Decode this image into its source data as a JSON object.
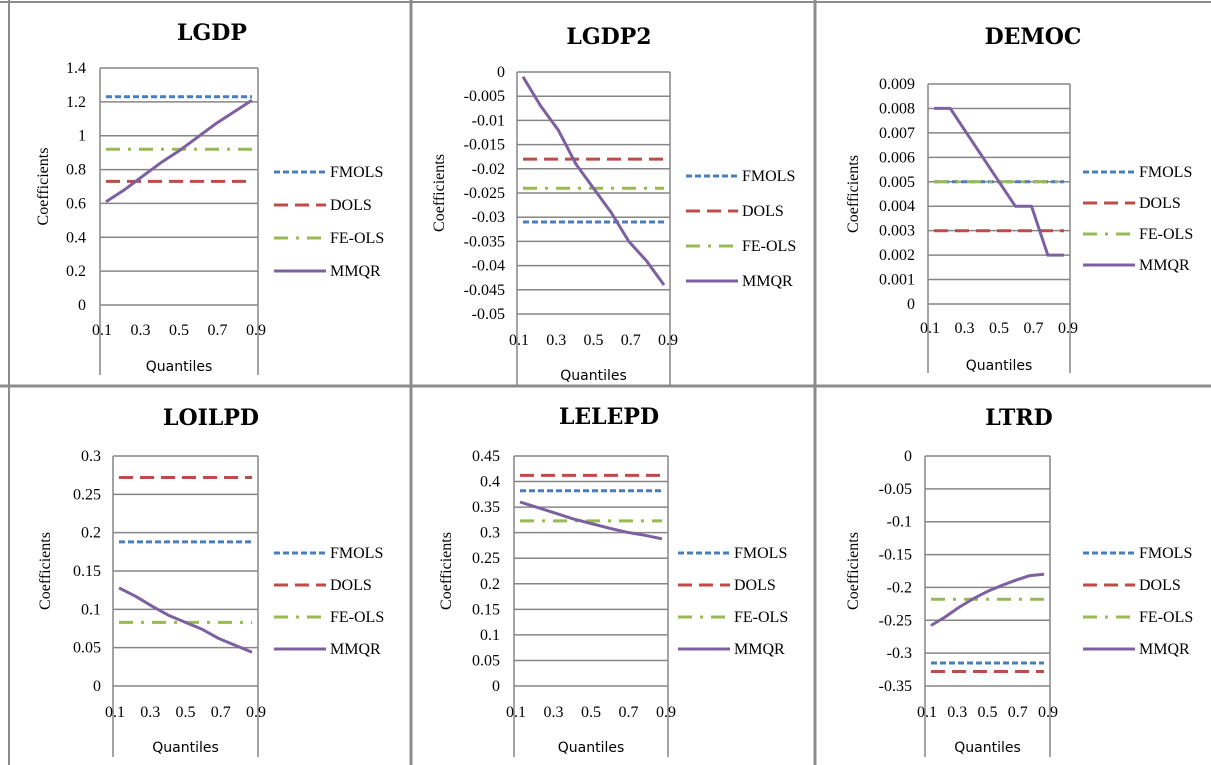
{
  "colors": {
    "FMOLS": "#4a7ebb",
    "DOLS": "#be4b48",
    "FE-OLS": "#98b954",
    "MMQR": "#7d60a0",
    "grid": "#868686",
    "frame": "#8c8c8c"
  },
  "legend_labels": [
    "FMOLS",
    "DOLS",
    "FE-OLS",
    "MMQR"
  ],
  "chart_data": [
    {
      "type": "line",
      "title": "LGDP",
      "xlabel": "Quantiles",
      "ylabel": "Coefficients",
      "x_tick_labels": [
        "0.1",
        "0.3",
        "0.5",
        "0.7",
        "0.9"
      ],
      "y_tick_labels": [
        "0",
        "0.2",
        "0.4",
        "0.6",
        "0.8",
        "1",
        "1.2",
        "1.4"
      ],
      "ylim": [
        0,
        1.4
      ],
      "grid": true,
      "legend": "right",
      "series": [
        {
          "name": "FMOLS",
          "x": [
            0.1,
            0.9
          ],
          "values": [
            1.23,
            1.23
          ]
        },
        {
          "name": "DOLS",
          "x": [
            0.1,
            0.9
          ],
          "values": [
            0.73,
            0.73
          ]
        },
        {
          "name": "FE-OLS",
          "x": [
            0.1,
            0.9
          ],
          "values": [
            0.92,
            0.92
          ]
        },
        {
          "name": "MMQR",
          "x": [
            0.1,
            0.2,
            0.3,
            0.4,
            0.5,
            0.6,
            0.7,
            0.8,
            0.9
          ],
          "values": [
            0.61,
            0.68,
            0.76,
            0.84,
            0.91,
            0.99,
            1.07,
            1.14,
            1.21
          ]
        }
      ]
    },
    {
      "type": "line",
      "title": "LGDP2",
      "xlabel": "Quantiles",
      "ylabel": "Coefficients",
      "x_tick_labels": [
        "0.1",
        "0.3",
        "0.5",
        "0.7",
        "0.9"
      ],
      "y_tick_labels": [
        "-0.05",
        "-0.045",
        "-0.04",
        "-0.035",
        "-0.03",
        "-0.025",
        "-0.02",
        "-0.015",
        "-0.01",
        "-0.005",
        "0"
      ],
      "ylim": [
        -0.05,
        0
      ],
      "grid": true,
      "legend": "right",
      "series": [
        {
          "name": "FMOLS",
          "x": [
            0.1,
            0.9
          ],
          "values": [
            -0.031,
            -0.031
          ]
        },
        {
          "name": "DOLS",
          "x": [
            0.1,
            0.9
          ],
          "values": [
            -0.018,
            -0.018
          ]
        },
        {
          "name": "FE-OLS",
          "x": [
            0.1,
            0.9
          ],
          "values": [
            -0.024,
            -0.024
          ]
        },
        {
          "name": "MMQR",
          "x": [
            0.1,
            0.2,
            0.3,
            0.4,
            0.5,
            0.6,
            0.7,
            0.8,
            0.9
          ],
          "values": [
            -0.001,
            -0.007,
            -0.012,
            -0.019,
            -0.024,
            -0.029,
            -0.035,
            -0.039,
            -0.044
          ]
        }
      ]
    },
    {
      "type": "line",
      "title": "DEMOC",
      "xlabel": "Quantiles",
      "ylabel": "Coefficients",
      "x_tick_labels": [
        "0.1",
        "0.3",
        "0.5",
        "0.7",
        "0.9"
      ],
      "y_tick_labels": [
        "0",
        "0.001",
        "0.002",
        "0.003",
        "0.004",
        "0.005",
        "0.006",
        "0.007",
        "0.008",
        "0.009"
      ],
      "ylim": [
        0,
        0.009
      ],
      "grid": true,
      "legend": "right",
      "series": [
        {
          "name": "FMOLS",
          "x": [
            0.1,
            0.9
          ],
          "values": [
            0.005,
            0.005
          ]
        },
        {
          "name": "DOLS",
          "x": [
            0.1,
            0.9
          ],
          "values": [
            0.003,
            0.003
          ]
        },
        {
          "name": "FE-OLS",
          "x": [
            0.1,
            0.9
          ],
          "values": [
            0.005,
            0.005
          ]
        },
        {
          "name": "MMQR",
          "x": [
            0.1,
            0.2,
            0.3,
            0.4,
            0.5,
            0.6,
            0.7,
            0.8,
            0.9
          ],
          "values": [
            0.008,
            0.008,
            0.007,
            0.006,
            0.005,
            0.004,
            0.004,
            0.002,
            0.002
          ]
        }
      ]
    },
    {
      "type": "line",
      "title": "LOILPD",
      "xlabel": "Quantiles",
      "ylabel": "Coefficients",
      "x_tick_labels": [
        "0.1",
        "0.3",
        "0.5",
        "0.7",
        "0.9"
      ],
      "y_tick_labels": [
        "0",
        "0.05",
        "0.1",
        "0.15",
        "0.2",
        "0.25",
        "0.3"
      ],
      "ylim": [
        0,
        0.3
      ],
      "grid": true,
      "legend": "right",
      "series": [
        {
          "name": "FMOLS",
          "x": [
            0.1,
            0.9
          ],
          "values": [
            0.188,
            0.188
          ]
        },
        {
          "name": "DOLS",
          "x": [
            0.1,
            0.9
          ],
          "values": [
            0.272,
            0.272
          ]
        },
        {
          "name": "FE-OLS",
          "x": [
            0.1,
            0.9
          ],
          "values": [
            0.083,
            0.083
          ]
        },
        {
          "name": "MMQR",
          "x": [
            0.1,
            0.2,
            0.3,
            0.4,
            0.5,
            0.6,
            0.7,
            0.8,
            0.9
          ],
          "values": [
            0.128,
            0.117,
            0.104,
            0.092,
            0.083,
            0.074,
            0.062,
            0.053,
            0.044
          ]
        }
      ]
    },
    {
      "type": "line",
      "title": "LELEPD",
      "xlabel": "Quantiles",
      "ylabel": "Coefficients",
      "x_tick_labels": [
        "0.1",
        "0.3",
        "0.5",
        "0.7",
        "0.9"
      ],
      "y_tick_labels": [
        "0",
        "0.05",
        "0.1",
        "0.15",
        "0.2",
        "0.25",
        "0.3",
        "0.35",
        "0.4",
        "0.45"
      ],
      "ylim": [
        0,
        0.45
      ],
      "grid": true,
      "legend": "right",
      "series": [
        {
          "name": "FMOLS",
          "x": [
            0.1,
            0.9
          ],
          "values": [
            0.382,
            0.382
          ]
        },
        {
          "name": "DOLS",
          "x": [
            0.1,
            0.9
          ],
          "values": [
            0.412,
            0.412
          ]
        },
        {
          "name": "FE-OLS",
          "x": [
            0.1,
            0.9
          ],
          "values": [
            0.323,
            0.323
          ]
        },
        {
          "name": "MMQR",
          "x": [
            0.1,
            0.2,
            0.3,
            0.4,
            0.5,
            0.6,
            0.7,
            0.8,
            0.9
          ],
          "values": [
            0.36,
            0.349,
            0.338,
            0.327,
            0.318,
            0.309,
            0.301,
            0.295,
            0.288
          ]
        }
      ]
    },
    {
      "type": "line",
      "title": "LTRD",
      "xlabel": "Quantiles",
      "ylabel": "Coefficients",
      "x_tick_labels": [
        "0.1",
        "0.3",
        "0.5",
        "0.7",
        "0.9"
      ],
      "y_tick_labels": [
        "-0.35",
        "-0.3",
        "-0.25",
        "-0.2",
        "-0.15",
        "-0.1",
        "-0.05",
        "0"
      ],
      "ylim": [
        -0.35,
        0
      ],
      "grid": true,
      "legend": "right",
      "series": [
        {
          "name": "FMOLS",
          "x": [
            0.1,
            0.9
          ],
          "values": [
            -0.315,
            -0.315
          ]
        },
        {
          "name": "DOLS",
          "x": [
            0.1,
            0.9
          ],
          "values": [
            -0.328,
            -0.328
          ]
        },
        {
          "name": "FE-OLS",
          "x": [
            0.1,
            0.9
          ],
          "values": [
            -0.218,
            -0.218
          ]
        },
        {
          "name": "MMQR",
          "x": [
            0.1,
            0.2,
            0.3,
            0.4,
            0.5,
            0.6,
            0.7,
            0.8,
            0.9
          ],
          "values": [
            -0.258,
            -0.245,
            -0.23,
            -0.217,
            -0.206,
            -0.197,
            -0.189,
            -0.182,
            -0.18
          ]
        }
      ]
    }
  ]
}
